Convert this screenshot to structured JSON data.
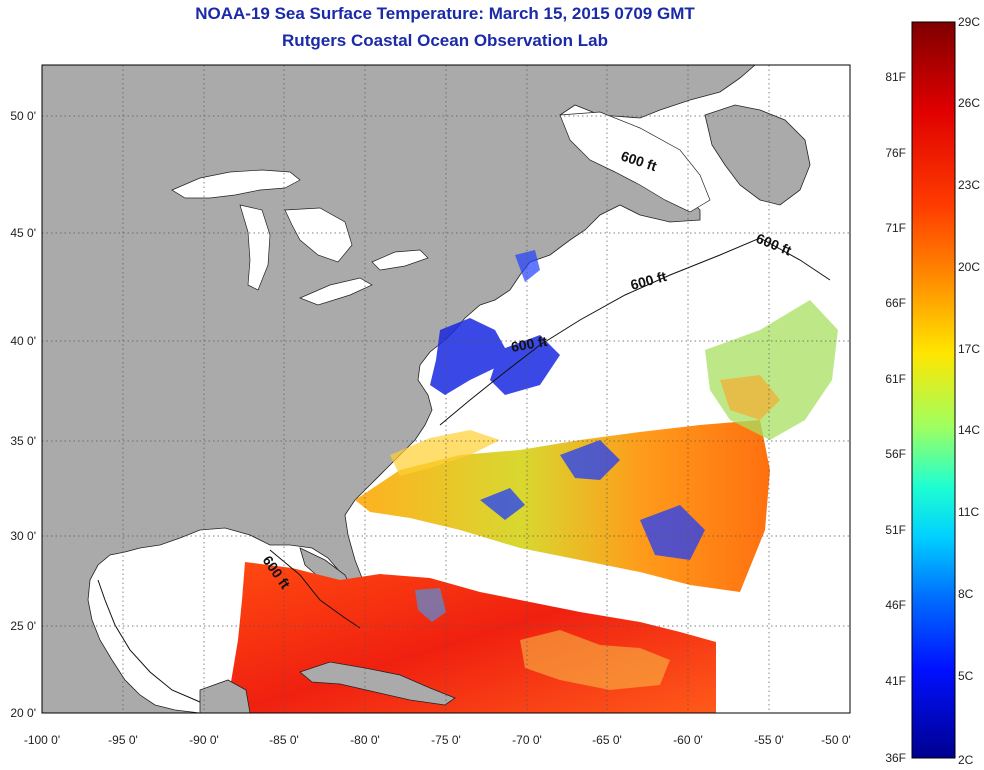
{
  "header": {
    "title": "NOAA-19 Sea Surface Temperature:  March 15, 2015 0709 GMT",
    "subtitle": "Rutgers Coastal Ocean Observation Lab"
  },
  "map": {
    "longitude_ticks": [
      "-100 0'",
      "-95 0'",
      "-90 0'",
      "-85 0'",
      "-80 0'",
      "-75 0'",
      "-70 0'",
      "-65 0'",
      "-60 0'",
      "-55 0'",
      "-50 0'"
    ],
    "latitude_ticks": [
      "50 0'",
      "45 0'",
      "40 0'",
      "35 0'",
      "30 0'",
      "25 0'",
      "20 0'"
    ],
    "contour_labels": [
      "600 ft",
      "600 ft",
      "600 ft",
      "600 ft",
      "600 ft"
    ],
    "colors": {
      "land": "#aaaaaa",
      "ocean_no_data": "#ffffff",
      "grid": "#555555"
    }
  },
  "colorbar": {
    "celsius_labels": [
      "29C",
      "26C",
      "23C",
      "20C",
      "17C",
      "14C",
      "11C",
      "8C",
      "5C",
      "2C"
    ],
    "fahrenheit_labels": [
      "81F",
      "76F",
      "71F",
      "66F",
      "61F",
      "56F",
      "51F",
      "46F",
      "41F",
      "36F"
    ],
    "color_stops": [
      "#7f0000",
      "#ff0000",
      "#ff7f00",
      "#ffff00",
      "#7fff7f",
      "#00ffff",
      "#007fff",
      "#0000ff",
      "#00008f"
    ]
  }
}
